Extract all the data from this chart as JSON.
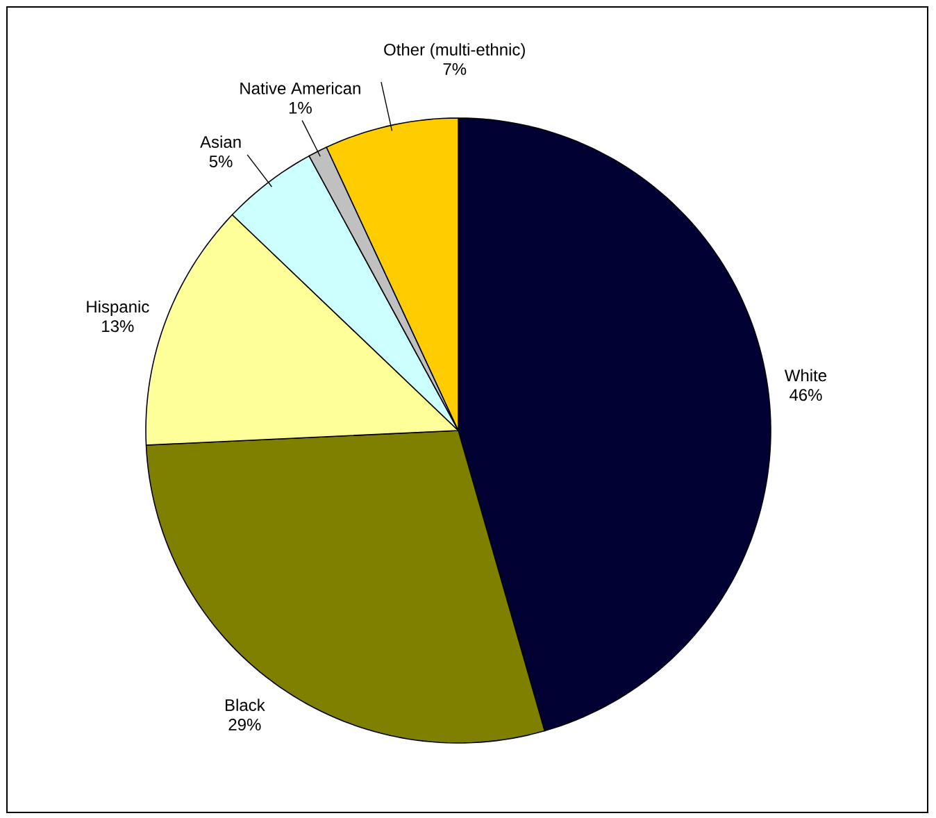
{
  "chart_data": {
    "type": "pie",
    "categories": [
      "White",
      "Black",
      "Hispanic",
      "Asian",
      "Native American",
      "Other (multi-ethnic)"
    ],
    "values": [
      46,
      29,
      13,
      5,
      1,
      7
    ],
    "value_labels": [
      "46%",
      "29%",
      "13%",
      "5%",
      "1%",
      "7%"
    ],
    "colors": [
      "#000033",
      "#808000",
      "#ffff99",
      "#ccffff",
      "#c0c0c0",
      "#ffcc00"
    ]
  }
}
